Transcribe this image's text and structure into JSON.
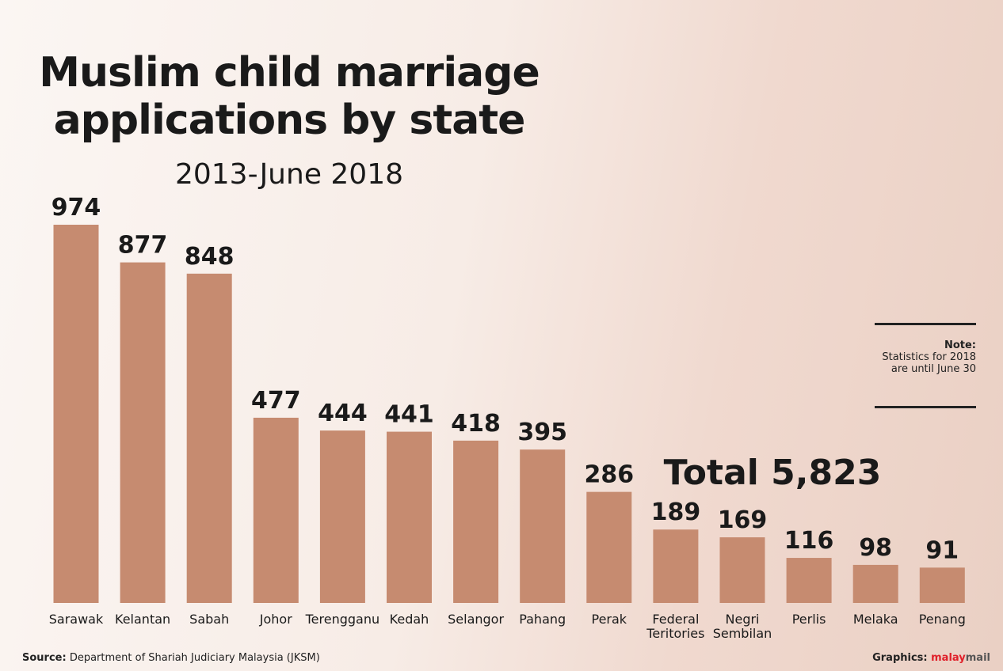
{
  "chart_data": {
    "type": "bar",
    "title": "Muslim child marriage applications by state",
    "subtitle": "2013-June 2018",
    "categories": [
      "Sarawak",
      "Kelantan",
      "Sabah",
      "Johor",
      "Terengganu",
      "Kedah",
      "Selangor",
      "Pahang",
      "Perak",
      "Federal\nTeritories",
      "Negri\nSembilan",
      "Perlis",
      "Melaka",
      "Penang"
    ],
    "values": [
      974,
      877,
      848,
      477,
      444,
      441,
      418,
      395,
      286,
      189,
      169,
      116,
      98,
      91
    ],
    "color": "#c68b70",
    "total": {
      "label": "Total 5,823",
      "value": 5823
    },
    "note": {
      "heading": "Note:",
      "text": "Statistics for 2018 are until June 30"
    },
    "source": {
      "label": "Source:",
      "text": "Department of Shariah Judiciary Malaysia (JKSM)"
    },
    "credit": {
      "label": "Graphics:",
      "brand_a": "malay",
      "brand_b": "mail"
    }
  }
}
